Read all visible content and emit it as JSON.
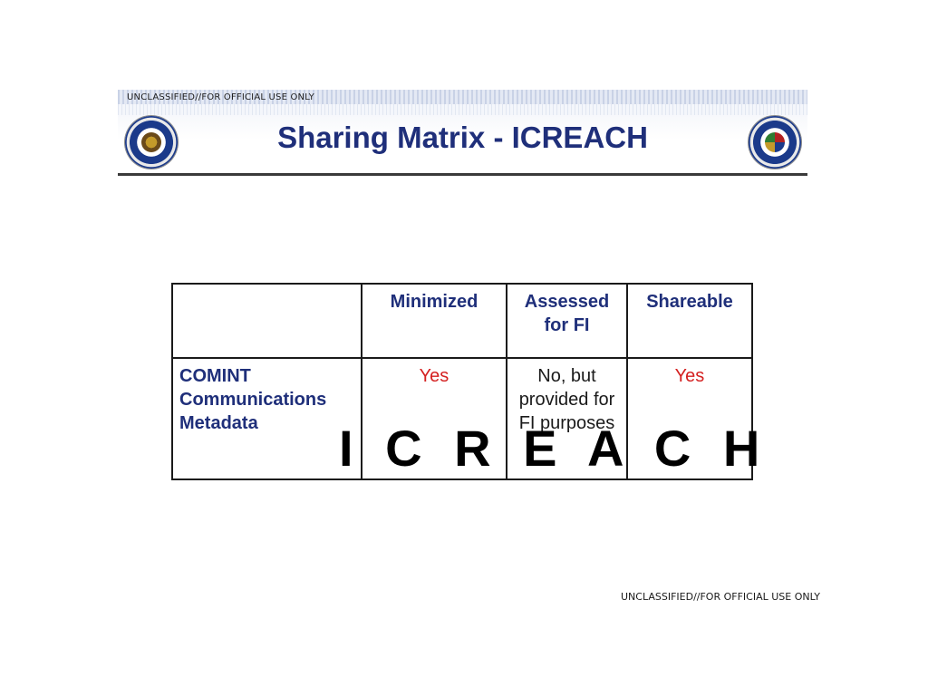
{
  "classification_top": "UNCLASSIFIED//FOR OFFICIAL USE ONLY",
  "classification_bottom": "UNCLASSIFIED//FOR OFFICIAL USE ONLY",
  "title": "Sharing Matrix - ICREACH",
  "table": {
    "headers": [
      "",
      "Minimized",
      "Assessed for FI",
      "Shareable"
    ],
    "rows": [
      {
        "label": "COMINT Communications Metadata",
        "minimized": "Yes",
        "assessed": "No, but provided for FI purposes",
        "shareable": "Yes"
      }
    ]
  },
  "overlay_text": "I C R E A C H",
  "colors": {
    "title": "#1f2f7a",
    "yes": "#d42020",
    "border": "#1a1a1a"
  },
  "icons": [
    "nsa-seal-icon",
    "css-seal-icon"
  ]
}
